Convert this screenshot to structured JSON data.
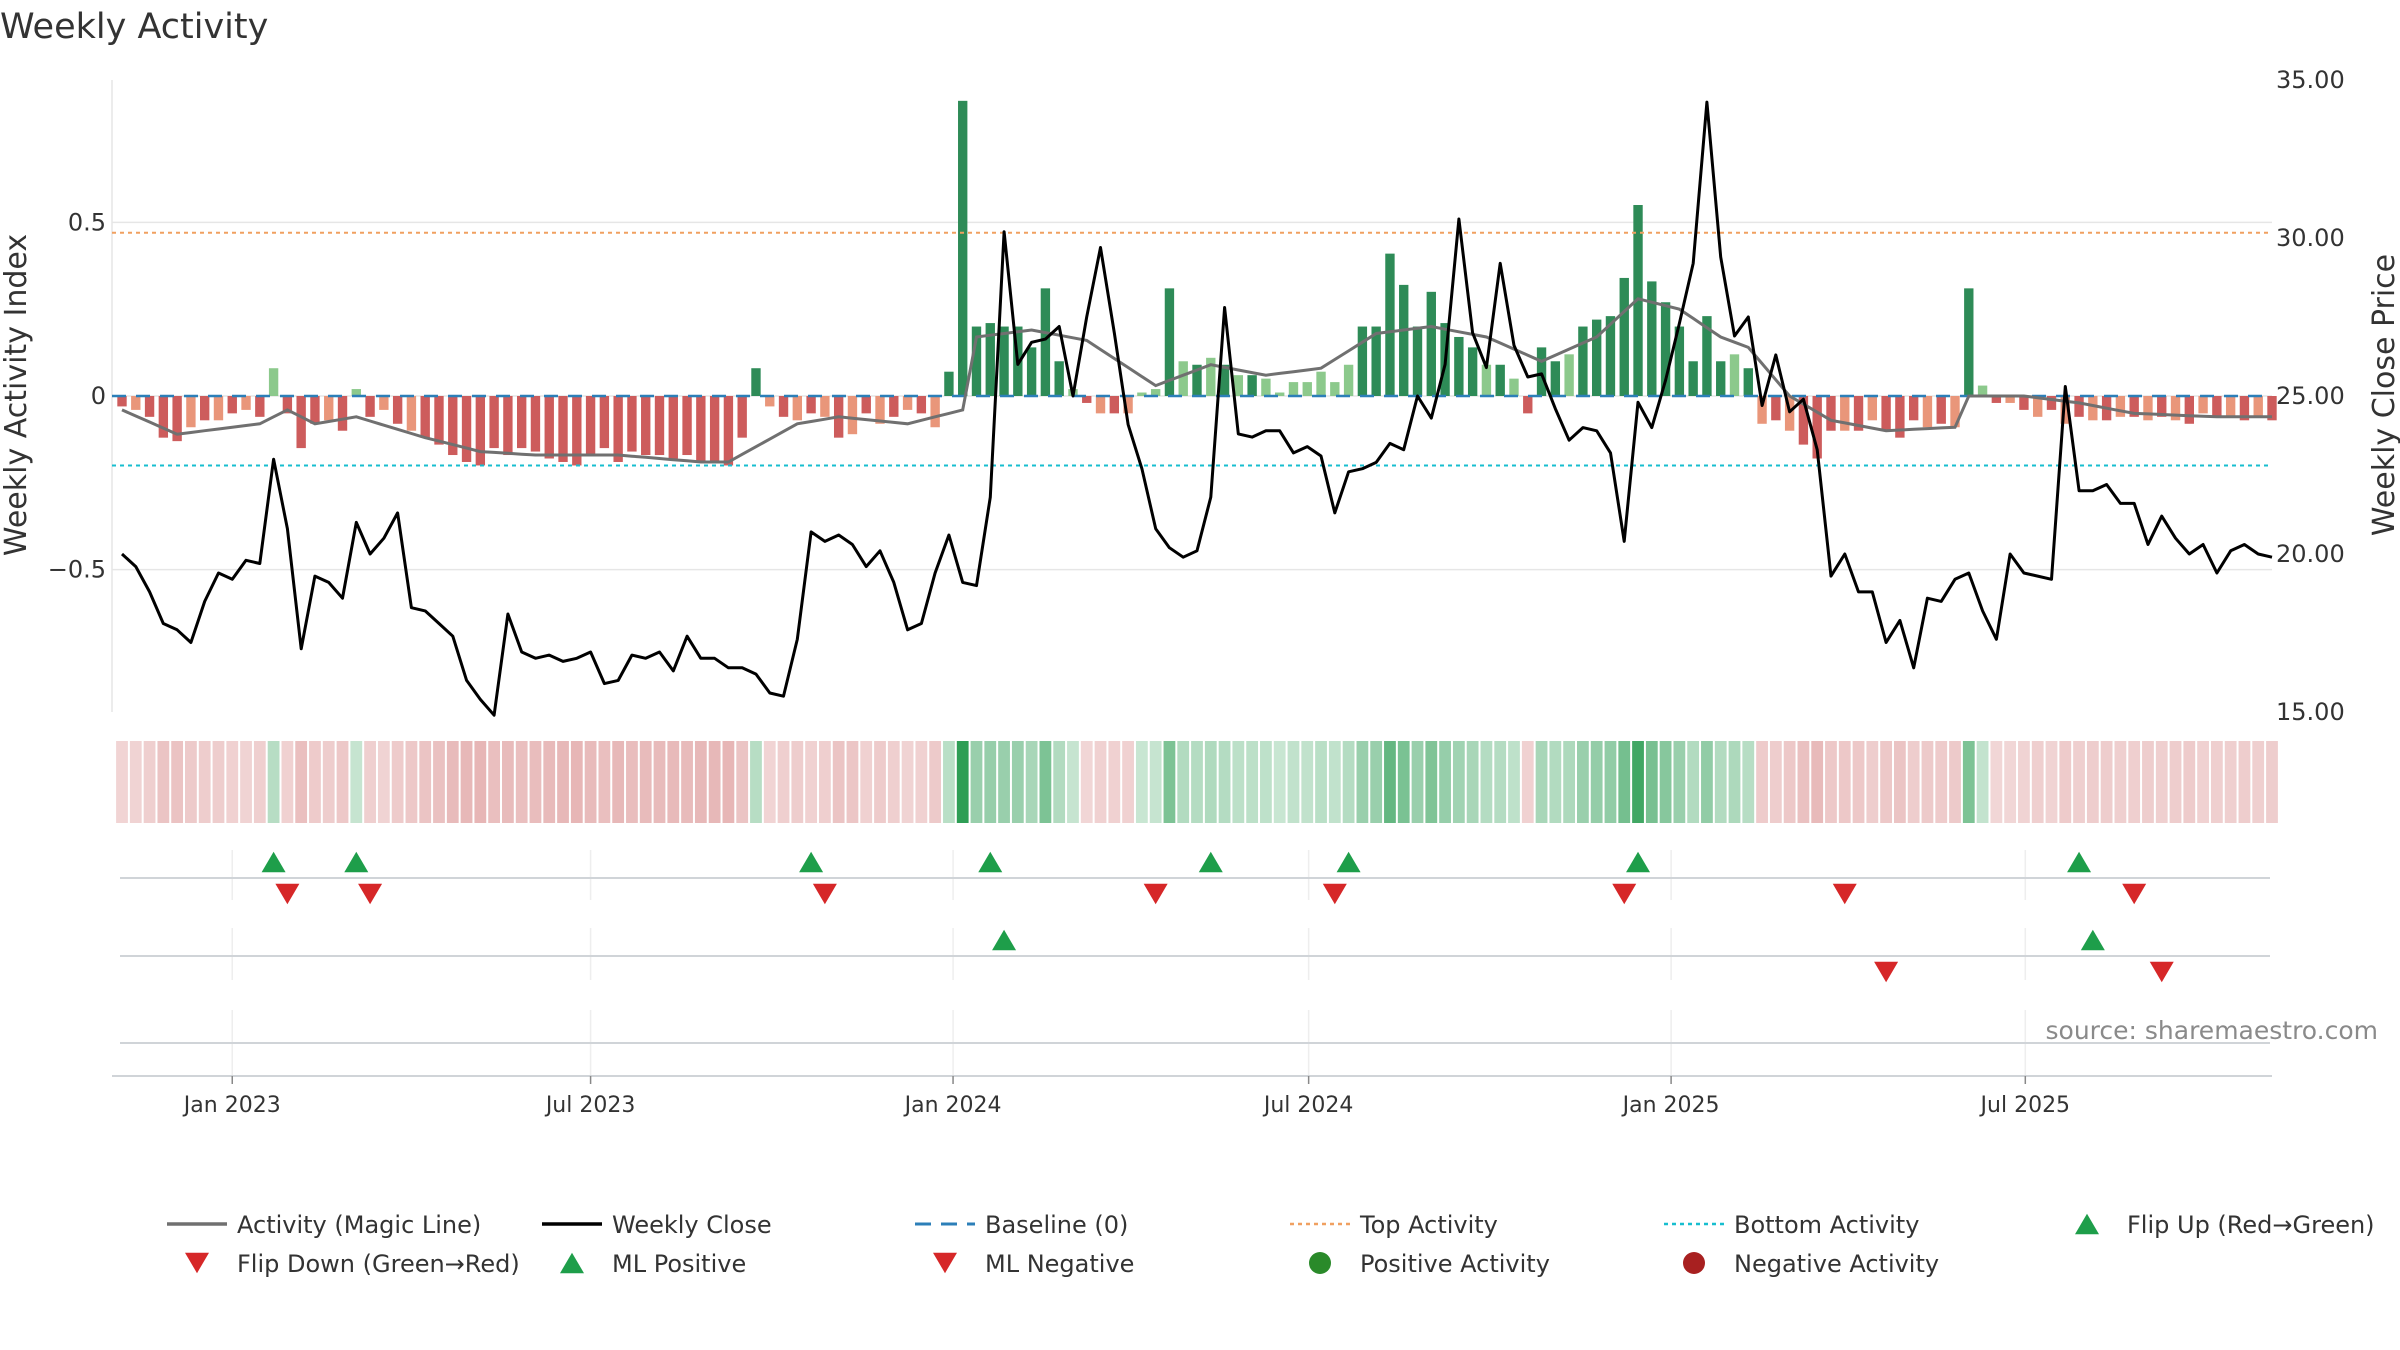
{
  "chart_data": {
    "type": "bar+line",
    "title": "Weekly Activity",
    "source": "source: sharemaestro.com",
    "ylabel_left": "Weekly Activity Index",
    "ylabel_right": "Weekly Close Price",
    "left_ticks": [
      "0.5",
      "0",
      "−0.5"
    ],
    "left_tick_values": [
      0.5,
      0,
      -0.5
    ],
    "right_ticks": [
      "35.00",
      "30.00",
      "25.00",
      "20.00",
      "15.00"
    ],
    "right_tick_values": [
      35,
      30,
      25,
      20,
      15
    ],
    "ylim_left": [
      -0.91,
      0.91
    ],
    "ylim_right": [
      15,
      35
    ],
    "x_ticks": [
      "Jan 2023",
      "Jul 2023",
      "Jan 2024",
      "Jul 2024",
      "Jan 2025",
      "Jul 2025"
    ],
    "x_tick_weeks": [
      8,
      34,
      60.3,
      86.1,
      112.4,
      138.1
    ],
    "week_count": 157,
    "top_activity": 0.47,
    "bottom_activity": -0.2,
    "baseline": 0,
    "activity_anchors": [
      [
        0,
        -0.03
      ],
      [
        1,
        -0.04
      ],
      [
        2,
        -0.06
      ],
      [
        3,
        -0.12
      ],
      [
        4,
        -0.13
      ],
      [
        5,
        -0.09
      ],
      [
        6,
        -0.07
      ],
      [
        7,
        -0.07
      ],
      [
        8,
        -0.05
      ],
      [
        9,
        -0.04
      ],
      [
        10,
        -0.06
      ],
      [
        11,
        0.08
      ],
      [
        12,
        -0.05
      ],
      [
        13,
        -0.15
      ],
      [
        14,
        -0.08
      ],
      [
        15,
        -0.07
      ],
      [
        16,
        -0.1
      ],
      [
        17,
        0.02
      ],
      [
        18,
        -0.06
      ],
      [
        19,
        -0.04
      ],
      [
        20,
        -0.08
      ],
      [
        21,
        -0.1
      ],
      [
        22,
        -0.12
      ],
      [
        23,
        -0.14
      ],
      [
        24,
        -0.17
      ],
      [
        25,
        -0.19
      ],
      [
        26,
        -0.2
      ],
      [
        27,
        -0.15
      ],
      [
        28,
        -0.17
      ],
      [
        29,
        -0.15
      ],
      [
        30,
        -0.16
      ],
      [
        31,
        -0.18
      ],
      [
        32,
        -0.19
      ],
      [
        33,
        -0.2
      ],
      [
        34,
        -0.17
      ],
      [
        35,
        -0.15
      ],
      [
        36,
        -0.19
      ],
      [
        37,
        -0.16
      ],
      [
        38,
        -0.17
      ],
      [
        39,
        -0.17
      ],
      [
        40,
        -0.18
      ],
      [
        41,
        -0.17
      ],
      [
        42,
        -0.19
      ],
      [
        43,
        -0.19
      ],
      [
        44,
        -0.2
      ],
      [
        45,
        -0.12
      ],
      [
        46,
        0.08
      ],
      [
        47,
        -0.03
      ],
      [
        48,
        -0.06
      ],
      [
        49,
        -0.07
      ],
      [
        50,
        -0.05
      ],
      [
        51,
        -0.06
      ],
      [
        52,
        -0.12
      ],
      [
        53,
        -0.11
      ],
      [
        54,
        -0.05
      ],
      [
        55,
        -0.08
      ],
      [
        56,
        -0.06
      ],
      [
        57,
        -0.04
      ],
      [
        58,
        -0.05
      ],
      [
        59,
        -0.09
      ],
      [
        60,
        0.07
      ],
      [
        61,
        0.85
      ],
      [
        62,
        0.2
      ],
      [
        63,
        0.21
      ],
      [
        64,
        0.2
      ],
      [
        65,
        0.2
      ],
      [
        66,
        0.14
      ],
      [
        67,
        0.31
      ],
      [
        68,
        0.1
      ],
      [
        69,
        0.02
      ],
      [
        70,
        -0.02
      ],
      [
        71,
        -0.05
      ],
      [
        72,
        -0.05
      ],
      [
        73,
        -0.05
      ],
      [
        74,
        0.01
      ],
      [
        75,
        0.02
      ],
      [
        76,
        0.31
      ],
      [
        77,
        0.1
      ],
      [
        78,
        0.09
      ],
      [
        79,
        0.11
      ],
      [
        80,
        0.09
      ],
      [
        81,
        0.06
      ],
      [
        82,
        0.06
      ],
      [
        83,
        0.05
      ],
      [
        84,
        0.01
      ],
      [
        85,
        0.04
      ],
      [
        86,
        0.04
      ],
      [
        87,
        0.07
      ],
      [
        88,
        0.04
      ],
      [
        89,
        0.09
      ],
      [
        90,
        0.2
      ],
      [
        91,
        0.2
      ],
      [
        92,
        0.41
      ],
      [
        93,
        0.32
      ],
      [
        94,
        0.2
      ],
      [
        95,
        0.3
      ],
      [
        96,
        0.21
      ],
      [
        97,
        0.17
      ],
      [
        98,
        0.14
      ],
      [
        99,
        0.09
      ],
      [
        100,
        0.09
      ],
      [
        101,
        0.05
      ],
      [
        102,
        -0.05
      ],
      [
        103,
        0.14
      ],
      [
        104,
        0.1
      ],
      [
        105,
        0.12
      ],
      [
        106,
        0.2
      ],
      [
        107,
        0.22
      ],
      [
        108,
        0.23
      ],
      [
        109,
        0.34
      ],
      [
        110,
        0.55
      ],
      [
        111,
        0.33
      ],
      [
        112,
        0.27
      ],
      [
        113,
        0.2
      ],
      [
        114,
        0.1
      ],
      [
        115,
        0.23
      ],
      [
        116,
        0.1
      ],
      [
        117,
        0.12
      ],
      [
        118,
        0.08
      ],
      [
        119,
        -0.08
      ],
      [
        120,
        -0.07
      ],
      [
        121,
        -0.1
      ],
      [
        122,
        -0.14
      ],
      [
        123,
        -0.18
      ],
      [
        124,
        -0.1
      ],
      [
        125,
        -0.1
      ],
      [
        126,
        -0.1
      ],
      [
        127,
        -0.07
      ],
      [
        128,
        -0.1
      ],
      [
        129,
        -0.12
      ],
      [
        130,
        -0.07
      ],
      [
        131,
        -0.09
      ],
      [
        132,
        -0.08
      ],
      [
        133,
        -0.09
      ],
      [
        134,
        0.31
      ],
      [
        135,
        0.03
      ],
      [
        136,
        -0.02
      ],
      [
        137,
        -0.02
      ],
      [
        138,
        -0.04
      ],
      [
        139,
        -0.06
      ],
      [
        140,
        -0.04
      ],
      [
        141,
        -0.08
      ],
      [
        142,
        -0.06
      ],
      [
        143,
        -0.07
      ],
      [
        144,
        -0.07
      ],
      [
        145,
        -0.06
      ],
      [
        146,
        -0.06
      ],
      [
        147,
        -0.07
      ],
      [
        148,
        -0.06
      ],
      [
        149,
        -0.07
      ],
      [
        150,
        -0.08
      ],
      [
        151,
        -0.05
      ],
      [
        152,
        -0.06
      ],
      [
        153,
        -0.06
      ],
      [
        154,
        -0.07
      ],
      [
        155,
        -0.06
      ],
      [
        156,
        -0.07
      ]
    ],
    "magic_anchors": [
      [
        0,
        -0.04
      ],
      [
        4,
        -0.11
      ],
      [
        10,
        -0.08
      ],
      [
        12,
        -0.04
      ],
      [
        14,
        -0.08
      ],
      [
        17,
        -0.06
      ],
      [
        22,
        -0.12
      ],
      [
        26,
        -0.16
      ],
      [
        30,
        -0.17
      ],
      [
        36,
        -0.17
      ],
      [
        42,
        -0.19
      ],
      [
        44,
        -0.19
      ],
      [
        49,
        -0.08
      ],
      [
        52,
        -0.06
      ],
      [
        57,
        -0.08
      ],
      [
        61,
        -0.04
      ],
      [
        62,
        0.17
      ],
      [
        66,
        0.19
      ],
      [
        70,
        0.16
      ],
      [
        75,
        0.03
      ],
      [
        79,
        0.09
      ],
      [
        83,
        0.06
      ],
      [
        87,
        0.08
      ],
      [
        91,
        0.18
      ],
      [
        95,
        0.2
      ],
      [
        99,
        0.17
      ],
      [
        103,
        0.1
      ],
      [
        107,
        0.17
      ],
      [
        110,
        0.28
      ],
      [
        113,
        0.25
      ],
      [
        116,
        0.17
      ],
      [
        118,
        0.14
      ],
      [
        121,
        0.0
      ],
      [
        124,
        -0.07
      ],
      [
        128,
        -0.1
      ],
      [
        133,
        -0.09
      ],
      [
        134,
        0.0
      ],
      [
        138,
        0.0
      ],
      [
        142,
        -0.02
      ],
      [
        146,
        -0.05
      ],
      [
        152,
        -0.06
      ],
      [
        156,
        -0.06
      ]
    ],
    "close_anchors": [
      [
        0,
        20.0
      ],
      [
        1,
        19.6
      ],
      [
        2,
        18.8
      ],
      [
        3,
        17.8
      ],
      [
        4,
        17.6
      ],
      [
        5,
        17.2
      ],
      [
        6,
        18.5
      ],
      [
        7,
        19.4
      ],
      [
        8,
        19.2
      ],
      [
        9,
        19.8
      ],
      [
        10,
        19.7
      ],
      [
        11,
        23.0
      ],
      [
        12,
        20.8
      ],
      [
        13,
        17.0
      ],
      [
        14,
        19.3
      ],
      [
        15,
        19.1
      ],
      [
        16,
        18.6
      ],
      [
        17,
        21.0
      ],
      [
        18,
        20.0
      ],
      [
        19,
        20.5
      ],
      [
        20,
        21.3
      ],
      [
        21,
        18.3
      ],
      [
        22,
        18.2
      ],
      [
        23,
        17.8
      ],
      [
        24,
        17.4
      ],
      [
        25,
        16.0
      ],
      [
        26,
        15.4
      ],
      [
        27,
        14.9
      ],
      [
        28,
        18.1
      ],
      [
        29,
        16.9
      ],
      [
        30,
        16.7
      ],
      [
        31,
        16.8
      ],
      [
        32,
        16.6
      ],
      [
        33,
        16.7
      ],
      [
        34,
        16.9
      ],
      [
        35,
        15.9
      ],
      [
        36,
        16.0
      ],
      [
        37,
        16.8
      ],
      [
        38,
        16.7
      ],
      [
        39,
        16.9
      ],
      [
        40,
        16.3
      ],
      [
        41,
        17.4
      ],
      [
        42,
        16.7
      ],
      [
        43,
        16.7
      ],
      [
        44,
        16.4
      ],
      [
        45,
        16.4
      ],
      [
        46,
        16.2
      ],
      [
        47,
        15.6
      ],
      [
        48,
        15.5
      ],
      [
        49,
        17.3
      ],
      [
        50,
        20.7
      ],
      [
        51,
        20.4
      ],
      [
        52,
        20.6
      ],
      [
        53,
        20.3
      ],
      [
        54,
        19.6
      ],
      [
        55,
        20.1
      ],
      [
        56,
        19.1
      ],
      [
        57,
        17.6
      ],
      [
        58,
        17.8
      ],
      [
        59,
        19.4
      ],
      [
        60,
        20.6
      ],
      [
        61,
        19.1
      ],
      [
        62,
        19.0
      ],
      [
        63,
        21.8
      ],
      [
        64,
        30.2
      ],
      [
        65,
        26.0
      ],
      [
        66,
        26.7
      ],
      [
        67,
        26.8
      ],
      [
        68,
        27.2
      ],
      [
        69,
        25.0
      ],
      [
        70,
        27.5
      ],
      [
        71,
        29.7
      ],
      [
        72,
        27.0
      ],
      [
        73,
        24.1
      ],
      [
        74,
        22.7
      ],
      [
        75,
        20.8
      ],
      [
        76,
        20.2
      ],
      [
        77,
        19.9
      ],
      [
        78,
        20.1
      ],
      [
        79,
        21.8
      ],
      [
        80,
        27.8
      ],
      [
        81,
        23.8
      ],
      [
        82,
        23.7
      ],
      [
        83,
        23.9
      ],
      [
        84,
        23.9
      ],
      [
        85,
        23.2
      ],
      [
        86,
        23.4
      ],
      [
        87,
        23.1
      ],
      [
        88,
        21.3
      ],
      [
        89,
        22.6
      ],
      [
        90,
        22.7
      ],
      [
        91,
        22.9
      ],
      [
        92,
        23.5
      ],
      [
        93,
        23.3
      ],
      [
        94,
        25.0
      ],
      [
        95,
        24.3
      ],
      [
        96,
        26.0
      ],
      [
        97,
        30.6
      ],
      [
        98,
        27.0
      ],
      [
        99,
        25.9
      ],
      [
        100,
        29.2
      ],
      [
        101,
        26.6
      ],
      [
        102,
        25.6
      ],
      [
        103,
        25.7
      ],
      [
        104,
        24.6
      ],
      [
        105,
        23.6
      ],
      [
        106,
        24.0
      ],
      [
        107,
        23.9
      ],
      [
        108,
        23.2
      ],
      [
        109,
        20.4
      ],
      [
        110,
        24.8
      ],
      [
        111,
        24.0
      ],
      [
        112,
        25.5
      ],
      [
        113,
        27.3
      ],
      [
        114,
        29.2
      ],
      [
        115,
        34.3
      ],
      [
        116,
        29.4
      ],
      [
        117,
        26.9
      ],
      [
        118,
        27.5
      ],
      [
        119,
        24.7
      ],
      [
        120,
        26.3
      ],
      [
        121,
        24.5
      ],
      [
        122,
        24.9
      ],
      [
        123,
        23.3
      ],
      [
        124,
        19.3
      ],
      [
        125,
        20.0
      ],
      [
        126,
        18.8
      ],
      [
        127,
        18.8
      ],
      [
        128,
        17.2
      ],
      [
        129,
        17.9
      ],
      [
        130,
        16.4
      ],
      [
        131,
        18.6
      ],
      [
        132,
        18.5
      ],
      [
        133,
        19.2
      ],
      [
        134,
        19.4
      ],
      [
        135,
        18.2
      ],
      [
        136,
        17.3
      ],
      [
        137,
        20.0
      ],
      [
        138,
        19.4
      ],
      [
        139,
        19.3
      ],
      [
        140,
        19.2
      ],
      [
        141,
        25.3
      ],
      [
        142,
        22.0
      ],
      [
        143,
        22.0
      ],
      [
        144,
        22.2
      ],
      [
        145,
        21.6
      ],
      [
        146,
        21.6
      ],
      [
        147,
        20.3
      ],
      [
        148,
        21.2
      ],
      [
        149,
        20.5
      ],
      [
        150,
        20.0
      ],
      [
        151,
        20.3
      ],
      [
        152,
        19.4
      ],
      [
        153,
        20.1
      ],
      [
        154,
        20.3
      ],
      [
        155,
        20.0
      ],
      [
        156,
        19.9
      ]
    ],
    "flip_up_weeks": [
      11,
      17,
      50,
      63,
      79,
      89,
      110,
      142
    ],
    "flip_down_weeks": [
      12,
      18,
      51,
      75,
      88,
      109,
      125,
      146
    ],
    "ml_positive_weeks": [
      64,
      143
    ],
    "ml_negative_weeks": [
      128,
      148
    ],
    "legend": [
      {
        "label": "Activity (Magic Line)",
        "marker": "line",
        "color": "#707070"
      },
      {
        "label": "Weekly Close",
        "marker": "line",
        "color": "#000000"
      },
      {
        "label": "Baseline (0)",
        "marker": "dash",
        "color": "#2c7fb8"
      },
      {
        "label": "Top Activity",
        "marker": "dotted",
        "color": "#f0a060"
      },
      {
        "label": "Bottom Activity",
        "marker": "dotted",
        "color": "#17becf"
      },
      {
        "label": "Flip Up (Red→Green)",
        "marker": "tri-up",
        "color": "#1e9e4a"
      },
      {
        "label": "Flip Down (Green→Red)",
        "marker": "tri-down",
        "color": "#d62728"
      },
      {
        "label": "ML Positive",
        "marker": "tri-up",
        "color": "#1e9e4a"
      },
      {
        "label": "ML Negative",
        "marker": "tri-down",
        "color": "#d62728"
      },
      {
        "label": "Positive Activity",
        "marker": "dot",
        "color": "#2a8a2a"
      },
      {
        "label": "Negative Activity",
        "marker": "dot",
        "color": "#a82020"
      }
    ]
  },
  "colors": {
    "pos_strong": "#2e8b57",
    "pos_light": "#8cc98c",
    "neg_strong": "#cd5c5c",
    "neg_light": "#e9967a",
    "flip_up": "#1e9e4a",
    "flip_down": "#d62728"
  }
}
